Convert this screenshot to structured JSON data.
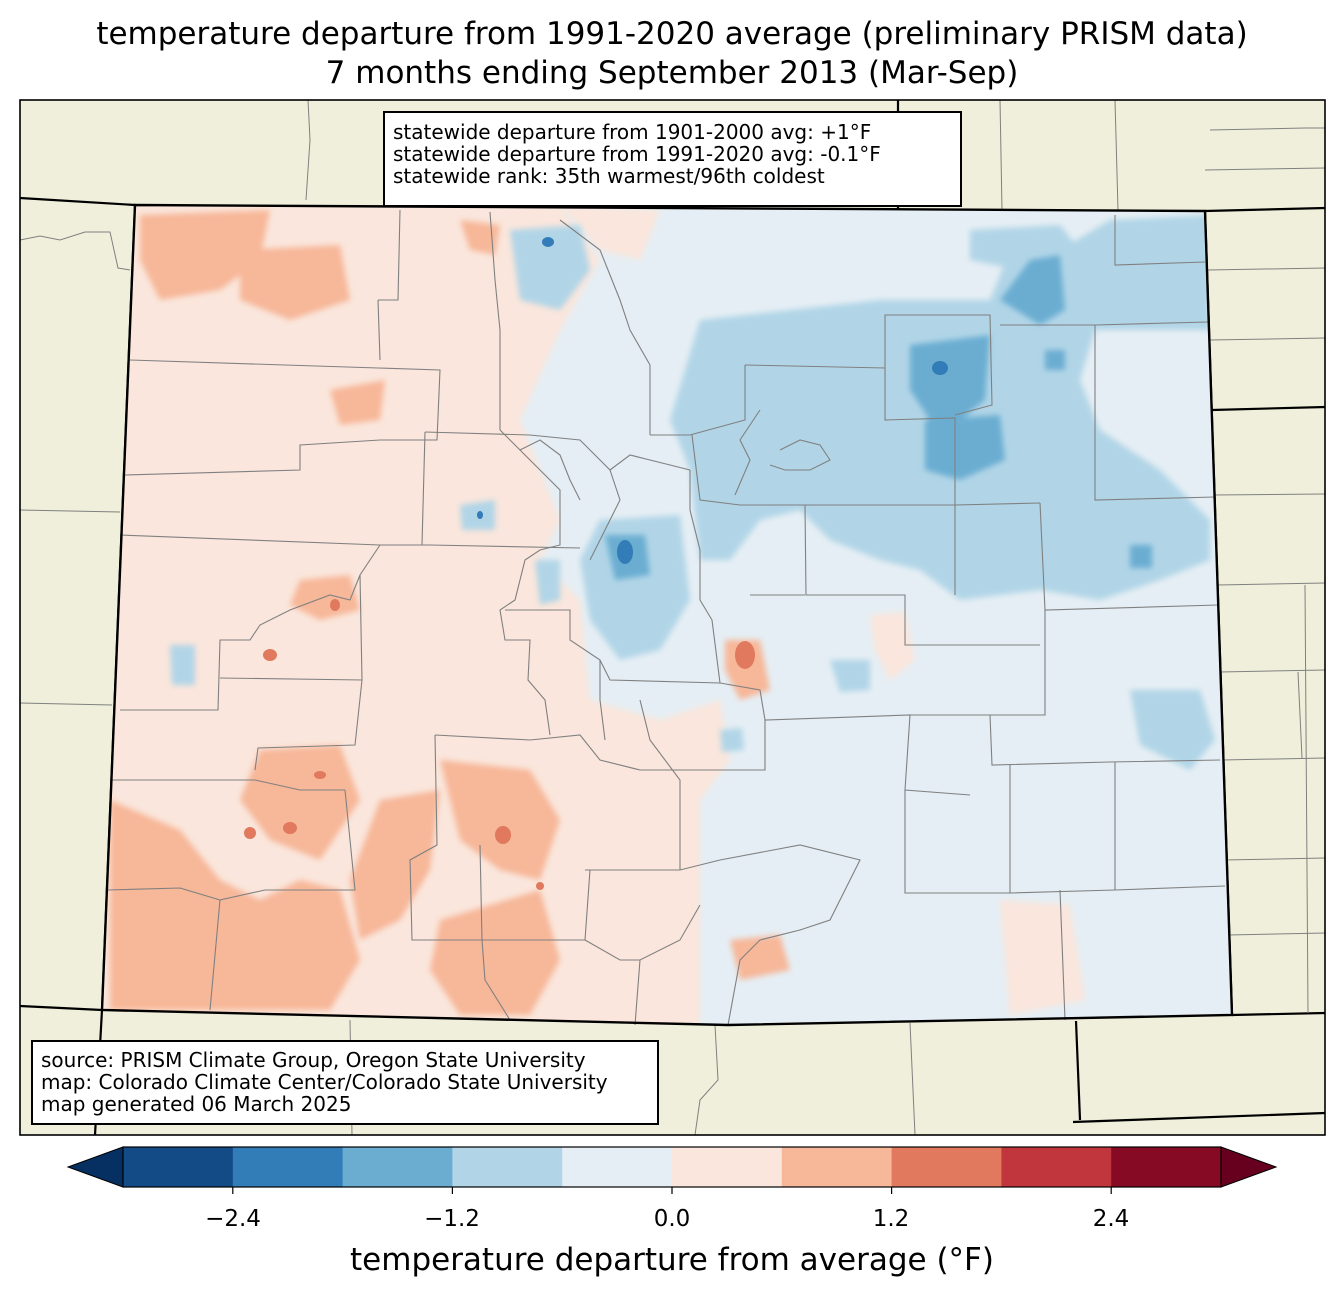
{
  "title": {
    "line1": "temperature departure from 1991-2020 average (preliminary PRISM data)",
    "line2": "7 months ending September 2013 (Mar-Sep)"
  },
  "stats_box": {
    "line1": "statewide departure from 1901-2000 avg: +1°F",
    "line2": "statewide departure from 1991-2020 avg: -0.1°F",
    "line3": "statewide rank: 35th warmest/96th coldest"
  },
  "source_box": {
    "line1": "source: PRISM Climate Group, Oregon State University",
    "line2": "map: Colorado Climate Center/Colorado State University",
    "line3": "map generated 06 March 2025"
  },
  "colorbar": {
    "label": "temperature departure from average (°F)",
    "ticks": [
      "−2.4",
      "−1.2",
      "0.0",
      "1.2",
      "2.4"
    ],
    "tick_values": [
      -2.4,
      -1.2,
      0.0,
      1.2,
      2.4
    ],
    "bounds": [
      -3.0,
      3.0
    ],
    "step": 0.6,
    "under_color": "#053061",
    "over_color": "#67001f",
    "colors": [
      "#134b87",
      "#327cb7",
      "#6badd1",
      "#b1d5e7",
      "#e5eef4",
      "#fae6dc",
      "#f7b799",
      "#e0795e",
      "#c0363c",
      "#870a24"
    ]
  },
  "map": {
    "background_color": "#efefdb",
    "state_fill_base": "#e5eef4",
    "county_line_color": "#808080",
    "state_line_color": "#000000"
  }
}
